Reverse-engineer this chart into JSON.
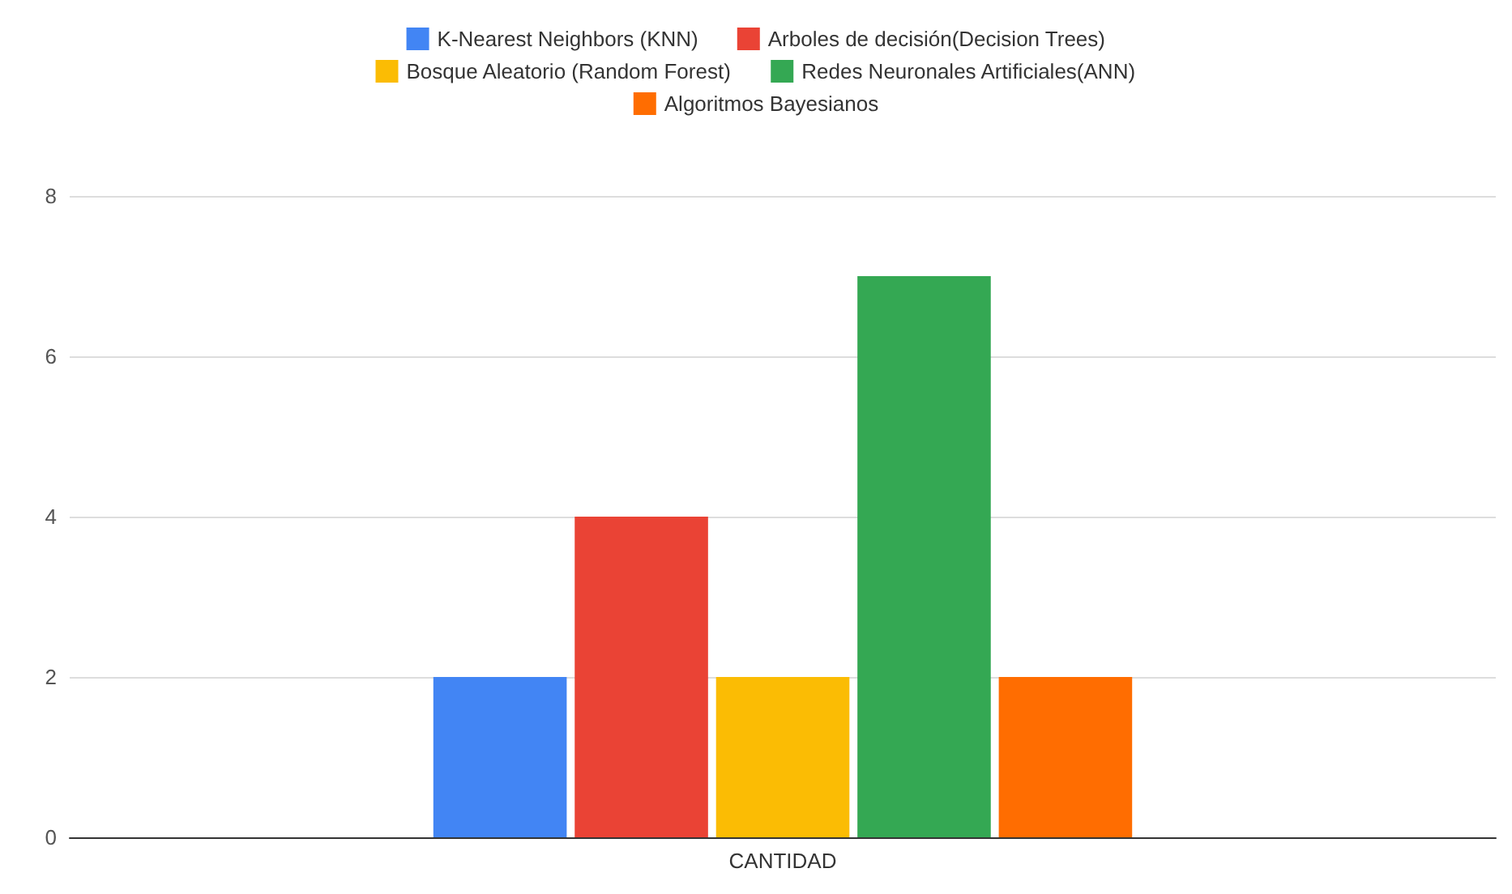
{
  "chart_data": {
    "type": "bar",
    "categories": [
      "CANTIDAD"
    ],
    "series": [
      {
        "name": "K-Nearest Neighbors (KNN)",
        "color": "#4285f4",
        "values": [
          2
        ]
      },
      {
        "name": "Arboles de decisión(Decision Trees)",
        "color": "#ea4335",
        "values": [
          4
        ]
      },
      {
        "name": "Bosque Aleatorio (Random Forest)",
        "color": "#fbbc04",
        "values": [
          2
        ]
      },
      {
        "name": "Redes Neuronales Artificiales(ANN)",
        "color": "#34a853",
        "values": [
          7
        ]
      },
      {
        "name": "Algoritmos Bayesianos",
        "color": "#ff6d01",
        "values": [
          2
        ]
      }
    ],
    "ylim": [
      0,
      8
    ],
    "yticks": [
      0,
      2,
      4,
      6,
      8
    ],
    "grid": "y",
    "legend": "top"
  }
}
